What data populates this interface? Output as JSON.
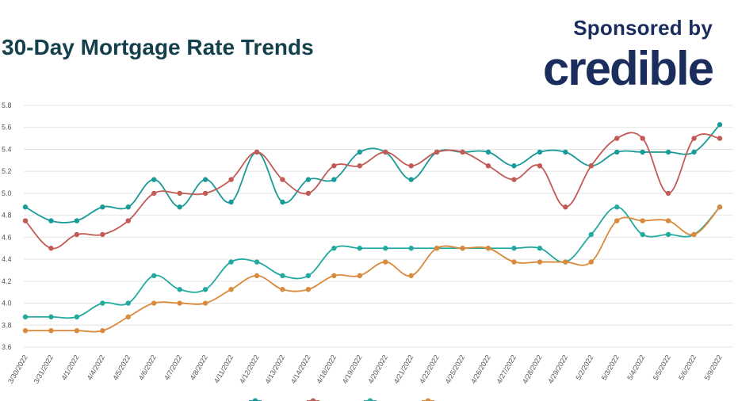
{
  "header": {
    "title": "30-Day Mortgage Rate Trends",
    "sponsor_text": "Sponsored by",
    "sponsor_brand": "credible"
  },
  "chart_data": {
    "type": "line",
    "title": "30-Day Mortgage Rate Trends",
    "xlabel": "",
    "ylabel": "",
    "ylim": [
      3.6,
      5.8
    ],
    "yticks": [
      "3.6",
      "3.8",
      "4.0",
      "4.2",
      "4.4",
      "4.6",
      "4.8",
      "5.0",
      "5.2",
      "5.4",
      "5.6",
      "5.8"
    ],
    "grid": true,
    "legend_position": "bottom",
    "categories": [
      "3/30/2022",
      "3/31/2022",
      "4/1/2022",
      "4/4/2022",
      "4/5/2022",
      "4/6/2022",
      "4/7/2022",
      "4/8/2022",
      "4/11/2022",
      "4/12/2022",
      "4/13/2022",
      "4/14/2022",
      "4/18/2022",
      "4/19/2022",
      "4/20/2022",
      "4/21/2022",
      "4/22/2022",
      "4/25/2022",
      "4/26/2022",
      "4/27/2022",
      "4/28/2022",
      "4/29/2022",
      "5/2/2022",
      "5/3/2022",
      "5/4/2022",
      "5/5/2022",
      "5/6/2022",
      "5/9/2022"
    ],
    "series": [
      {
        "name": "",
        "color": "#1a9a98",
        "values": [
          4.875,
          4.75,
          4.75,
          4.875,
          4.875,
          5.125,
          4.875,
          5.125,
          4.92,
          5.375,
          4.92,
          5.125,
          5.125,
          5.375,
          5.375,
          5.125,
          5.375,
          5.375,
          5.375,
          5.25,
          5.375,
          5.375,
          5.25,
          5.375,
          5.375,
          5.375,
          5.375,
          5.625
        ]
      },
      {
        "name": "",
        "color": "#c25a55",
        "values": [
          4.75,
          4.5,
          4.625,
          4.625,
          4.75,
          5.0,
          5.0,
          5.0,
          5.125,
          5.375,
          5.125,
          5.0,
          5.25,
          5.25,
          5.375,
          5.25,
          5.375,
          5.375,
          5.25,
          5.125,
          5.25,
          4.875,
          5.25,
          5.5,
          5.5,
          5.0,
          5.5,
          5.5
        ]
      },
      {
        "name": "",
        "color": "#22aa9e",
        "values": [
          3.875,
          3.875,
          3.875,
          4.0,
          4.0,
          4.25,
          4.125,
          4.125,
          4.375,
          4.375,
          4.25,
          4.25,
          4.5,
          4.5,
          4.5,
          4.5,
          4.5,
          4.5,
          4.5,
          4.5,
          4.5,
          4.375,
          4.625,
          4.875,
          4.625,
          4.625,
          4.625,
          4.875
        ]
      },
      {
        "name": "",
        "color": "#d98a3c",
        "values": [
          3.75,
          3.75,
          3.75,
          3.75,
          3.875,
          4.0,
          4.0,
          4.0,
          4.125,
          4.25,
          4.125,
          4.125,
          4.25,
          4.25,
          4.375,
          4.25,
          4.5,
          4.5,
          4.5,
          4.375,
          4.375,
          4.375,
          4.375,
          4.75,
          4.75,
          4.75,
          4.625,
          4.875
        ]
      }
    ]
  }
}
